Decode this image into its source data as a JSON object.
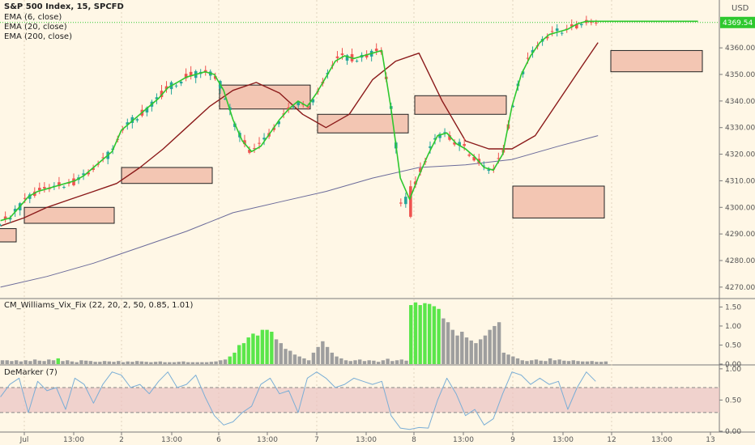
{
  "header": {
    "title": "S&P 500 Index, 15, SPCFD",
    "currency": "USD",
    "price_tag": "4369.54"
  },
  "legends": {
    "ema6": "EMA (6, close)",
    "ema20": "EMA (20, close)",
    "ema200": "EMA (200, close)",
    "vixfix": "CM_Williams_Vix_Fix (22, 20, 2, 50, 0.85, 1.01)",
    "demarker": "DeMarker (7)"
  },
  "colors": {
    "background": "#fff7e6",
    "up": "#26a69a",
    "down": "#ef5350",
    "ema6": "#2ec82e",
    "ema20": "#8b1a1a",
    "ema200": "#6b6b9a",
    "zone_fill": "#f3c6b3",
    "vix_gray": "#9e9e9e",
    "vix_green": "#5ae64a",
    "demarker_line": "#7aaed6",
    "demarker_band": "#e9c2c2",
    "price_tag": "#2ec82e"
  },
  "chart_data": [
    {
      "type": "candlestick",
      "title": "S&P 500 Index, 15, SPCFD",
      "x_tick_labels": [
        "Jul",
        "13:00",
        "2",
        "13:00",
        "6",
        "13:00",
        "7",
        "13:00",
        "8",
        "13:00",
        "9",
        "13:00",
        "12",
        "13:00",
        "13"
      ],
      "y_tick_labels": [
        "4270.00",
        "4280.00",
        "4290.00",
        "4300.00",
        "4310.00",
        "4320.00",
        "4330.00",
        "4340.00",
        "4350.00",
        "4360.00"
      ],
      "ylim": [
        4266,
        4378
      ],
      "current_price": 4369.54,
      "series": [
        {
          "name": "EMA (6, close)",
          "x": [
            0,
            4,
            8,
            12,
            16,
            20,
            24,
            28,
            32,
            36,
            40,
            44,
            48,
            52,
            56,
            60,
            64,
            68,
            72,
            76,
            80,
            84,
            88,
            92,
            96,
            100,
            104,
            108,
            112,
            116,
            120,
            124,
            128,
            132,
            136,
            140,
            144,
            148,
            152,
            156,
            160,
            164,
            168,
            172,
            176,
            180,
            184,
            188,
            192,
            196,
            200,
            204,
            208,
            212,
            216,
            220,
            224,
            228,
            232,
            236,
            240,
            244,
            248,
            252,
            256,
            260,
            264,
            268,
            272,
            276,
            280,
            284,
            288,
            292,
            296,
            300
          ],
          "values": [
            4295,
            4296,
            4300,
            4304,
            4306,
            4307,
            4308,
            4309,
            4310,
            4312,
            4315,
            4318,
            4321,
            4329,
            4332,
            4335,
            4338,
            4341,
            4345,
            4347,
            4349,
            4350,
            4351,
            4350,
            4344,
            4333,
            4325,
            4321,
            4323,
            4328,
            4333,
            4337,
            4340,
            4338,
            4343,
            4349,
            4355,
            4357,
            4356,
            4357,
            4358,
            4359,
            4337,
            4311,
            4303,
            4312,
            4320,
            4327,
            4328,
            4324,
            4322,
            4319,
            4315,
            4314,
            4320,
            4338,
            4350,
            4357,
            4362,
            4365,
            4366,
            4367,
            4369,
            4370,
            4370,
            4370,
            4370,
            4370,
            4370,
            4370,
            4370,
            4370,
            4370,
            4370,
            4370,
            4370
          ]
        },
        {
          "name": "EMA (20, close)",
          "x": [
            0,
            10,
            20,
            30,
            40,
            50,
            60,
            70,
            80,
            90,
            100,
            110,
            120,
            130,
            140,
            150,
            160,
            170,
            180,
            190,
            200,
            210,
            220,
            230,
            240,
            250,
            257
          ],
          "values": [
            4293,
            4296,
            4300,
            4303,
            4306,
            4309,
            4315,
            4322,
            4330,
            4338,
            4344,
            4347,
            4343,
            4335,
            4330,
            4335,
            4348,
            4355,
            4358,
            4340,
            4325,
            4322,
            4322,
            4327,
            4340,
            4353,
            4362
          ]
        },
        {
          "name": "EMA (200, close)",
          "x": [
            0,
            20,
            40,
            60,
            80,
            100,
            120,
            140,
            160,
            180,
            200,
            220,
            240,
            257
          ],
          "values": [
            4270,
            4274,
            4279,
            4285,
            4291,
            4298,
            4302,
            4306,
            4311,
            4315,
            4316,
            4318,
            4323,
            4327
          ]
        }
      ]
    },
    {
      "type": "bar",
      "title": "CM_Williams_Vix_Fix (22, 20, 2, 50, 0.85, 1.01)",
      "y_tick_labels": [
        "0.00",
        "0.50",
        "1.00",
        "1.50"
      ],
      "ylim": [
        0,
        1.7
      ],
      "values": [
        0.1,
        0.1,
        0.08,
        0.1,
        0.07,
        0.1,
        0.08,
        0.12,
        0.09,
        0.08,
        0.12,
        0.1,
        0.15,
        0.08,
        0.1,
        0.07,
        0.05,
        0.1,
        0.09,
        0.08,
        0.06,
        0.06,
        0.08,
        0.07,
        0.06,
        0.08,
        0.05,
        0.07,
        0.06,
        0.08,
        0.07,
        0.06,
        0.05,
        0.06,
        0.07,
        0.05,
        0.05,
        0.05,
        0.06,
        0.07,
        0.05,
        0.05,
        0.05,
        0.05,
        0.05,
        0.06,
        0.07,
        0.1,
        0.12,
        0.2,
        0.3,
        0.5,
        0.55,
        0.7,
        0.8,
        0.75,
        0.9,
        0.9,
        0.85,
        0.65,
        0.55,
        0.4,
        0.35,
        0.25,
        0.2,
        0.15,
        0.1,
        0.3,
        0.45,
        0.6,
        0.45,
        0.3,
        0.2,
        0.15,
        0.1,
        0.08,
        0.1,
        0.12,
        0.08,
        0.1,
        0.09,
        0.06,
        0.1,
        0.14,
        0.08,
        0.1,
        0.12,
        0.09,
        1.55,
        1.62,
        1.55,
        1.6,
        1.58,
        1.52,
        1.45,
        1.2,
        1.1,
        0.9,
        0.75,
        0.85,
        0.7,
        0.62,
        0.55,
        0.65,
        0.75,
        0.9,
        1.0,
        1.1,
        0.3,
        0.25,
        0.2,
        0.15,
        0.1,
        0.08,
        0.1,
        0.12,
        0.09,
        0.08,
        0.15,
        0.1,
        0.12,
        0.09,
        0.08,
        0.1,
        0.08,
        0.07,
        0.07,
        0.08,
        0.06,
        0.06,
        0.07
      ],
      "green_flags": [
        0,
        0,
        0,
        0,
        0,
        0,
        0,
        0,
        0,
        0,
        0,
        0,
        1,
        0,
        0,
        0,
        0,
        0,
        0,
        0,
        0,
        0,
        0,
        0,
        0,
        0,
        0,
        0,
        0,
        0,
        0,
        0,
        0,
        0,
        0,
        0,
        0,
        0,
        0,
        0,
        0,
        0,
        0,
        0,
        0,
        0,
        0,
        0,
        0,
        1,
        1,
        1,
        1,
        1,
        1,
        1,
        1,
        1,
        1,
        0,
        0,
        0,
        0,
        0,
        0,
        0,
        0,
        0,
        0,
        0,
        0,
        0,
        0,
        0,
        0,
        0,
        0,
        0,
        0,
        0,
        0,
        0,
        0,
        0,
        0,
        0,
        0,
        0,
        1,
        1,
        1,
        1,
        1,
        1,
        1,
        0,
        0,
        0,
        0,
        0,
        0,
        0,
        0,
        0,
        0,
        0,
        0,
        0,
        0,
        0,
        0,
        0,
        0,
        0,
        0,
        0,
        0,
        0,
        0,
        0,
        0,
        0,
        0,
        0,
        0,
        0,
        0,
        0,
        0,
        0,
        0
      ]
    },
    {
      "type": "line",
      "title": "DeMarker (7)",
      "y_tick_labels": [
        "0.00",
        "0.50",
        "1.00"
      ],
      "ylim": [
        0,
        1.05
      ],
      "band": [
        0.3,
        0.7
      ],
      "x": [
        0,
        4,
        8,
        12,
        16,
        20,
        24,
        28,
        32,
        36,
        40,
        44,
        48,
        52,
        56,
        60,
        64,
        68,
        72,
        76,
        80,
        84,
        88,
        92,
        96,
        100,
        104,
        108,
        112,
        116,
        120,
        124,
        128,
        132,
        136,
        140,
        144,
        148,
        152,
        156,
        160,
        164,
        168,
        172,
        176,
        180,
        184,
        188,
        192,
        196,
        200,
        204,
        208,
        212,
        216,
        220,
        224,
        228,
        232,
        236,
        240,
        244,
        248,
        252,
        256
      ],
      "values": [
        0.55,
        0.75,
        0.85,
        0.3,
        0.8,
        0.65,
        0.7,
        0.35,
        0.85,
        0.75,
        0.45,
        0.75,
        0.95,
        0.9,
        0.7,
        0.75,
        0.6,
        0.8,
        0.95,
        0.7,
        0.75,
        0.9,
        0.55,
        0.25,
        0.1,
        0.15,
        0.3,
        0.4,
        0.75,
        0.85,
        0.6,
        0.65,
        0.3,
        0.85,
        0.95,
        0.85,
        0.7,
        0.75,
        0.85,
        0.8,
        0.75,
        0.8,
        0.25,
        0.05,
        0.03,
        0.06,
        0.05,
        0.5,
        0.85,
        0.6,
        0.25,
        0.35,
        0.1,
        0.2,
        0.6,
        0.95,
        0.9,
        0.75,
        0.85,
        0.75,
        0.8,
        0.35,
        0.7,
        0.95,
        0.8
      ]
    }
  ]
}
